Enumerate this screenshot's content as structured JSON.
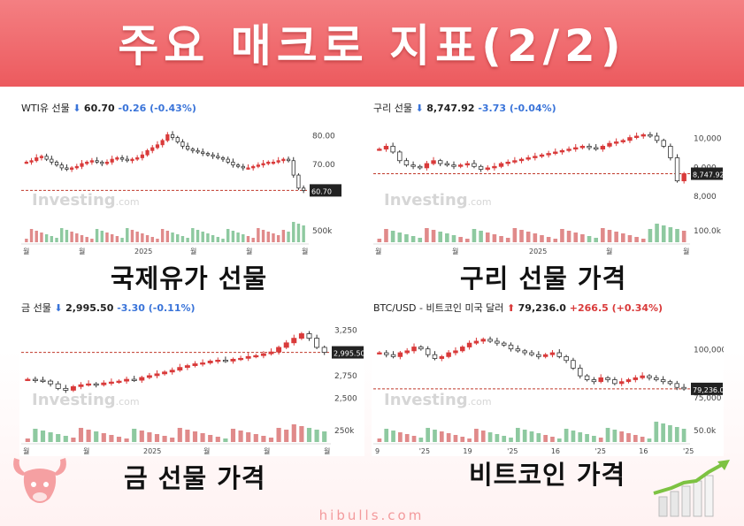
{
  "page": {
    "title": "주요 매크로 지표(2/2)",
    "footer": "hibulls.com",
    "colors": {
      "header": "#ee6064",
      "up": "#d93a3a",
      "down": "#3a74d9",
      "volume_up": "#e08a8a",
      "volume_down": "#8ec9a0",
      "refline": "#c0392b"
    }
  },
  "panels": [
    {
      "caption": "국제유가 선물",
      "header": {
        "name": "WTI유 선물",
        "direction": "down",
        "price": "60.70",
        "change": "-0.26",
        "change_pct": "(-0.43%)"
      },
      "watermark": "Investing",
      "watermark_suffix": ".com",
      "price_tag": "60.70",
      "y_ticks": [
        "80.00",
        "70.00"
      ],
      "volume_tick": "500k",
      "x_ticks": [
        "월",
        "월",
        "2025",
        "월",
        "월",
        "월"
      ]
    },
    {
      "caption": "구리 선물 가격",
      "header": {
        "name": "구리 선물",
        "direction": "down",
        "price": "8,747.92",
        "change": "-3.73",
        "change_pct": "(-0.04%)"
      },
      "watermark": "Investing",
      "watermark_suffix": ".com",
      "price_tag": "8,747.92",
      "y_ticks": [
        "10,000",
        "9,000",
        "8,000"
      ],
      "volume_tick": "100.0k",
      "x_ticks": [
        "월",
        "월",
        "2025",
        "월",
        "월"
      ]
    },
    {
      "caption": "금 선물 가격",
      "header": {
        "name": "금 선물",
        "direction": "down",
        "price": "2,995.50",
        "change": "-3.30",
        "change_pct": "(-0.11%)"
      },
      "watermark": "Investing",
      "watermark_suffix": ".com",
      "price_tag": "2,995.50",
      "y_ticks": [
        "3,250",
        "2,750",
        "2,500"
      ],
      "volume_tick": "250k",
      "x_ticks": [
        "월",
        "월",
        "2025",
        "월",
        "월",
        "월"
      ]
    },
    {
      "caption": "비트코인 가격",
      "header": {
        "name": "BTC/USD - 비트코인 미국 달러",
        "direction": "up",
        "price": "79,236.0",
        "change": "+266.5",
        "change_pct": "(+0.34%)"
      },
      "watermark": "Investing",
      "watermark_suffix": ".com",
      "price_tag": "79,236.00",
      "y_ticks": [
        "100,000",
        "75,000"
      ],
      "volume_tick": "50.0k",
      "x_ticks": [
        "9",
        "'25",
        "19",
        "'25",
        "16",
        "'25",
        "16",
        "'25"
      ]
    }
  ],
  "chart_data": [
    {
      "type": "candlestick",
      "title": "WTI유 선물",
      "ylim": [
        55,
        85
      ],
      "x": [
        "월",
        "월",
        "2025",
        "월",
        "월",
        "월"
      ],
      "close_values": [
        70.5,
        71.0,
        72.0,
        72.5,
        71.5,
        70.5,
        69.5,
        68.5,
        68.0,
        68.5,
        69.0,
        70.0,
        70.5,
        71.0,
        70.5,
        70.0,
        70.5,
        71.5,
        72.0,
        71.5,
        71.0,
        71.5,
        72.0,
        73.0,
        74.5,
        75.5,
        76.5,
        78.0,
        80.0,
        79.0,
        77.5,
        76.0,
        75.0,
        74.5,
        74.0,
        73.5,
        73.0,
        72.5,
        72.0,
        71.5,
        70.5,
        69.5,
        69.0,
        68.5,
        68.5,
        69.0,
        69.5,
        70.0,
        70.5,
        70.5,
        71.0,
        71.5,
        71.0,
        66.0,
        61.5,
        60.7
      ],
      "ref_line": 60.7,
      "volume_label": "500k"
    },
    {
      "type": "candlestick",
      "title": "구리 선물",
      "ylim": [
        7600,
        10600
      ],
      "x": [
        "월",
        "월",
        "2025",
        "월",
        "월"
      ],
      "close_values": [
        9600,
        9700,
        9500,
        9200,
        9050,
        9000,
        8950,
        9100,
        9200,
        9100,
        9050,
        9000,
        9050,
        9100,
        9000,
        8900,
        8950,
        9000,
        9100,
        9150,
        9200,
        9250,
        9300,
        9350,
        9400,
        9450,
        9500,
        9550,
        9600,
        9650,
        9700,
        9650,
        9600,
        9700,
        9800,
        9850,
        9900,
        10000,
        10050,
        10100,
        10050,
        9900,
        9700,
        9300,
        8500,
        8747.92
      ],
      "ref_line": 8747.92,
      "volume_label": "100.0k"
    },
    {
      "type": "candlestick",
      "title": "금 선물",
      "ylim": [
        2400,
        3350
      ],
      "x": [
        "월",
        "월",
        "2025",
        "월",
        "월",
        "월"
      ],
      "close_values": [
        2700,
        2690,
        2680,
        2650,
        2600,
        2580,
        2620,
        2640,
        2650,
        2640,
        2660,
        2670,
        2680,
        2700,
        2690,
        2720,
        2740,
        2760,
        2780,
        2800,
        2830,
        2850,
        2870,
        2880,
        2900,
        2910,
        2900,
        2920,
        2930,
        2950,
        2960,
        2980,
        3000,
        3050,
        3100,
        3150,
        3200,
        3150,
        3050,
        2995.5
      ],
      "ref_line": 2995.5,
      "volume_label": "250k"
    },
    {
      "type": "candlestick",
      "title": "BTC/USD - 비트코인 미국 달러",
      "ylim": [
        70000,
        115000
      ],
      "x": [
        "9",
        "'25",
        "19",
        "'25",
        "16",
        "'25",
        "16",
        "'25"
      ],
      "close_values": [
        98000,
        97000,
        96000,
        98000,
        99000,
        101000,
        100000,
        97000,
        95000,
        96000,
        98000,
        99000,
        101000,
        103000,
        104000,
        105000,
        104000,
        103000,
        102000,
        100000,
        99000,
        98000,
        97000,
        96000,
        97000,
        98000,
        96000,
        94000,
        90000,
        86000,
        84000,
        83000,
        85000,
        84000,
        82000,
        83000,
        84000,
        85000,
        86000,
        85000,
        84000,
        83000,
        82000,
        80000,
        79236
      ],
      "ref_line": 79236,
      "volume_label": "50.0k"
    }
  ]
}
